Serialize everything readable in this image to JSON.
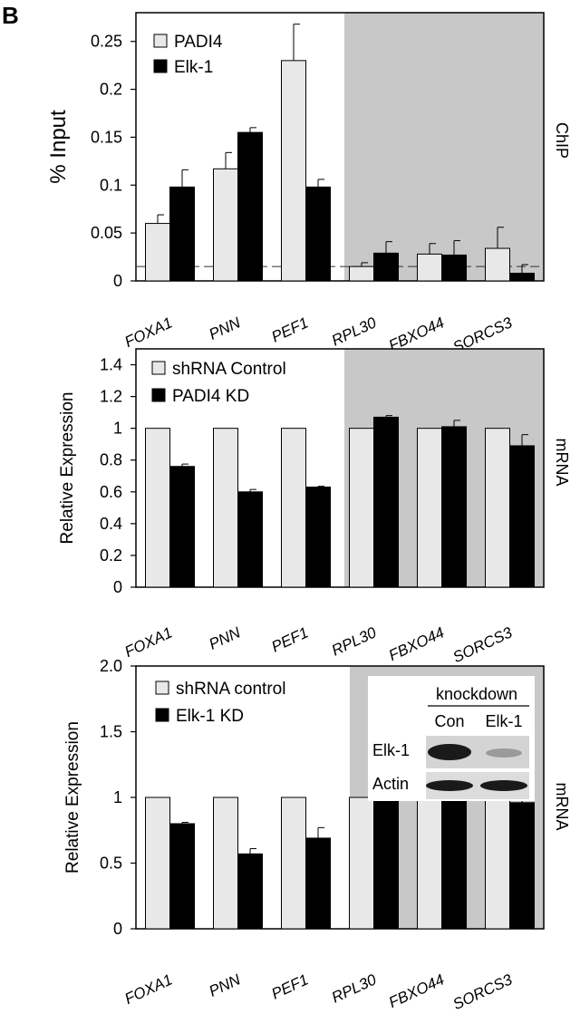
{
  "panel_label": "B",
  "chart_data": [
    {
      "type": "bar",
      "side_label": "ChIP",
      "ylabel": "% Input",
      "ylim": [
        0,
        0.28
      ],
      "yticks": [
        "0",
        "0.05",
        "0.1",
        "0.15",
        "0.2",
        "0.25"
      ],
      "ytick_values": [
        0,
        0.05,
        0.1,
        0.15,
        0.2,
        0.25
      ],
      "categories": [
        "FOXA1",
        "PNN",
        "PEF1",
        "RPL30",
        "FBXO44",
        "SORCS3"
      ],
      "shaded_categories": [
        "RPL30",
        "FBXO44",
        "SORCS3"
      ],
      "reference_line": 0.015,
      "series": [
        {
          "name": "PADI4",
          "color": "#e8e8e8",
          "values": [
            0.06,
            0.117,
            0.23,
            0.015,
            0.028,
            0.034
          ],
          "errors": [
            0.009,
            0.017,
            0.038,
            0.004,
            0.011,
            0.022
          ]
        },
        {
          "name": "Elk-1",
          "color": "#000000",
          "values": [
            0.098,
            0.155,
            0.098,
            0.029,
            0.027,
            0.008
          ],
          "errors": [
            0.018,
            0.005,
            0.008,
            0.012,
            0.015,
            0.009
          ]
        }
      ]
    },
    {
      "type": "bar",
      "side_label": "mRNA",
      "ylabel": "Relative Expression",
      "ylim": [
        0,
        1.5
      ],
      "yticks": [
        "0",
        "0.2",
        "0.4",
        "0.6",
        "0.8",
        "1",
        "1.2",
        "1.4"
      ],
      "ytick_values": [
        0,
        0.2,
        0.4,
        0.6,
        0.8,
        1,
        1.2,
        1.4
      ],
      "categories": [
        "FOXA1",
        "PNN",
        "PEF1",
        "RPL30",
        "FBXO44",
        "SORCS3"
      ],
      "shaded_categories": [
        "RPL30",
        "FBXO44",
        "SORCS3"
      ],
      "series": [
        {
          "name": "shRNA Control",
          "color": "#e8e8e8",
          "values": [
            1,
            1,
            1,
            1,
            1,
            1
          ],
          "errors": [
            0,
            0,
            0,
            0,
            0,
            0
          ]
        },
        {
          "name": "PADI4 KD",
          "color": "#000000",
          "values": [
            0.76,
            0.6,
            0.63,
            1.07,
            1.01,
            0.89
          ],
          "errors": [
            0.015,
            0.015,
            0.005,
            0.01,
            0.04,
            0.07
          ]
        }
      ]
    },
    {
      "type": "bar",
      "side_label": "mRNA",
      "ylabel": "Relative Expression",
      "ylim": [
        0,
        2.0
      ],
      "yticks": [
        "0",
        "0.5",
        "1",
        "1.5",
        "2.0"
      ],
      "ytick_values": [
        0,
        0.5,
        1,
        1.5,
        2.0
      ],
      "categories": [
        "FOXA1",
        "PNN",
        "PEF1",
        "RPL30",
        "FBXO44",
        "SORCS3"
      ],
      "shaded_categories": [
        "RPL30",
        "FBXO44",
        "SORCS3"
      ],
      "series": [
        {
          "name": "shRNA control",
          "color": "#e8e8e8",
          "values": [
            1,
            1,
            1,
            1,
            1,
            1
          ],
          "errors": [
            0,
            0,
            0,
            0,
            0,
            0
          ]
        },
        {
          "name": "Elk-1 KD",
          "color": "#000000",
          "values": [
            0.8,
            0.57,
            0.69,
            0.97,
            0.99,
            0.96
          ],
          "errors": [
            0.01,
            0.04,
            0.08,
            0.06,
            0.03,
            0.08
          ]
        }
      ],
      "inset": {
        "header": "knockdown",
        "columns": [
          "Con",
          "Elk-1"
        ],
        "rows": [
          "Elk-1",
          "Actin"
        ]
      }
    }
  ]
}
